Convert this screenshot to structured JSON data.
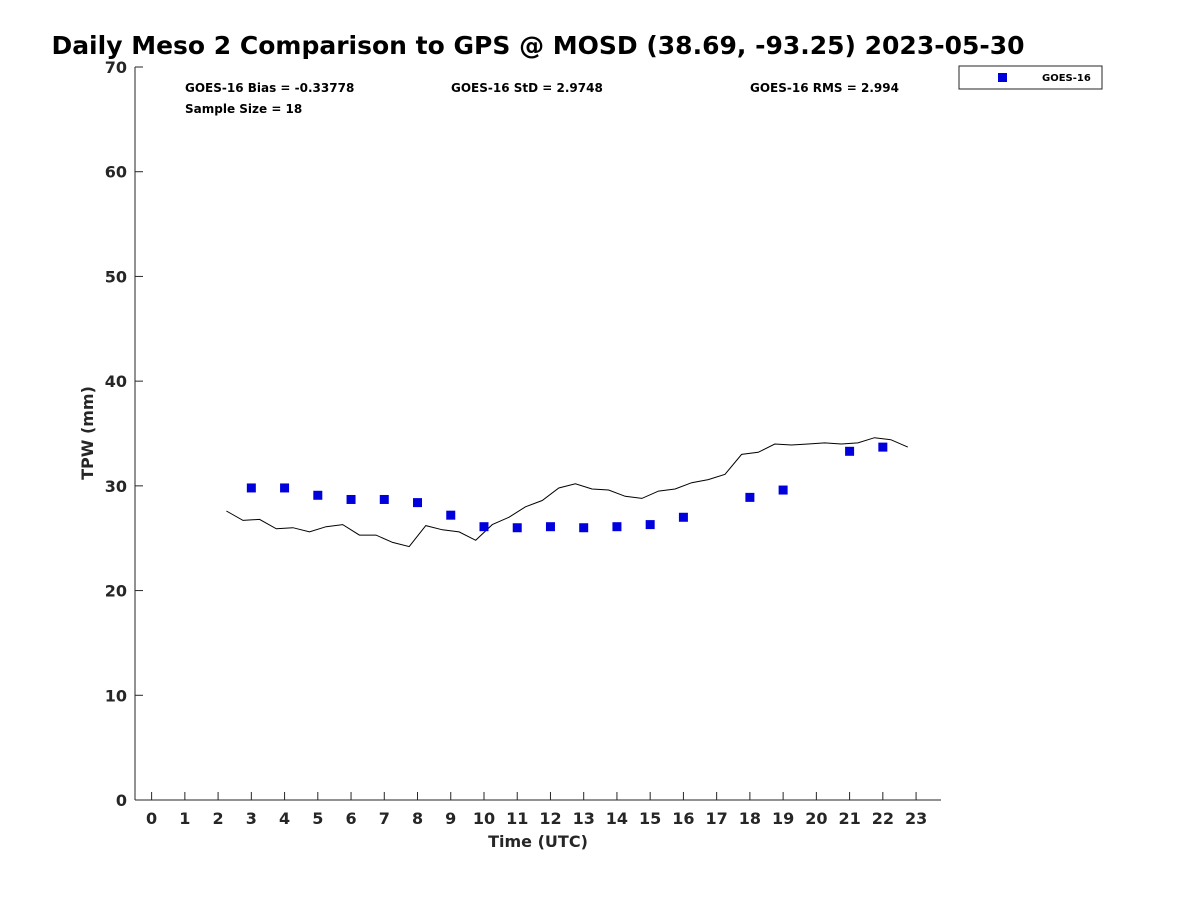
{
  "chart_data": {
    "type": "scatter",
    "title": "Daily Meso 2 Comparison to GPS @ MOSD (38.69, -93.25) 2023-05-30",
    "xlabel": "Time (UTC)",
    "ylabel": "TPW (mm)",
    "xlim": [
      -0.5,
      23.75
    ],
    "ylim": [
      0,
      70
    ],
    "x_ticks": [
      0,
      1,
      2,
      3,
      4,
      5,
      6,
      7,
      8,
      9,
      10,
      11,
      12,
      13,
      14,
      15,
      16,
      17,
      18,
      19,
      20,
      21,
      22,
      23
    ],
    "y_ticks": [
      0,
      10,
      20,
      30,
      40,
      50,
      60,
      70
    ],
    "grid": false,
    "legend_position": "top-right",
    "stats": {
      "bias": "GOES-16 Bias = -0.33778",
      "std": "GOES-16 StD = 2.9748",
      "rms": "GOES-16 RMS = 2.994",
      "sample": "Sample Size = 18"
    },
    "series": [
      {
        "name": "GOES-16",
        "type": "scatter",
        "color": "#0000dd",
        "marker": "square",
        "x": [
          3,
          4,
          5,
          6,
          7,
          8,
          9,
          10,
          11,
          12,
          13,
          14,
          15,
          16,
          18,
          19,
          21,
          22
        ],
        "y": [
          29.8,
          29.8,
          29.1,
          28.7,
          28.7,
          28.4,
          27.2,
          26.1,
          26.0,
          26.1,
          26.0,
          26.1,
          26.3,
          27.0,
          28.9,
          29.6,
          33.3,
          33.7
        ]
      },
      {
        "type": "line",
        "color": "#000000",
        "x": [
          2.25,
          2.75,
          3.25,
          3.75,
          4.25,
          4.75,
          5.25,
          5.75,
          6.25,
          6.75,
          7.25,
          7.75,
          8.25,
          8.75,
          9.25,
          9.75,
          10.25,
          10.75,
          11.25,
          11.75,
          12.25,
          12.75,
          13.25,
          13.75,
          14.25,
          14.75,
          15.25,
          15.75,
          16.25,
          16.75,
          17.25,
          17.75,
          18.25,
          18.75,
          19.25,
          19.75,
          20.25,
          20.75,
          21.25,
          21.75,
          22.25,
          22.75
        ],
        "y": [
          27.6,
          26.7,
          26.8,
          25.9,
          26.0,
          25.6,
          26.1,
          26.3,
          25.3,
          25.3,
          24.6,
          24.2,
          26.2,
          25.8,
          25.6,
          24.8,
          26.3,
          27.0,
          28.0,
          28.6,
          29.8,
          30.2,
          29.7,
          29.6,
          29.0,
          28.8,
          29.5,
          29.7,
          30.3,
          30.6,
          31.1,
          33.0,
          33.2,
          34.0,
          33.9,
          34.0,
          34.1,
          34.0,
          34.1,
          34.6,
          34.4,
          33.7
        ]
      }
    ]
  }
}
